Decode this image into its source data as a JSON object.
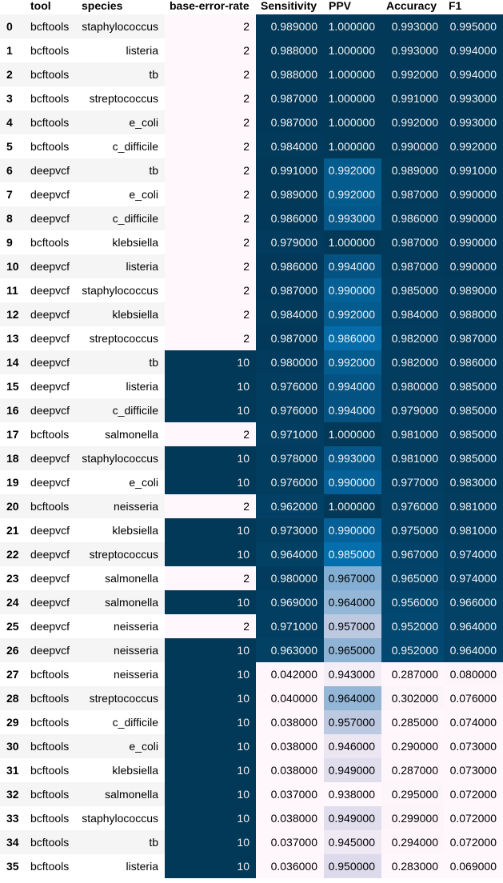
{
  "headers": {
    "index": "",
    "tool": "tool",
    "species": "species",
    "base_error_rate": "base-error-rate",
    "sensitivity": "Sensitivity",
    "ppv": "PPV",
    "accuracy": "Accuracy",
    "f1": "F1"
  },
  "colors": {
    "stripe": "#f5f5f5",
    "white": "#ffffff",
    "dark_blue": "#023858",
    "light_pink": "#fff7fb",
    "light_text": "#f1f1f1",
    "dark_text": "#000000"
  },
  "rows": [
    {
      "index": "0",
      "tool": "bcftools",
      "species": "staphylococcus",
      "base_error_rate": "2",
      "sensitivity": "0.989000",
      "ppv": "1.000000",
      "accuracy": "0.993000",
      "f1": "0.995000"
    },
    {
      "index": "1",
      "tool": "bcftools",
      "species": "listeria",
      "base_error_rate": "2",
      "sensitivity": "0.988000",
      "ppv": "1.000000",
      "accuracy": "0.993000",
      "f1": "0.994000"
    },
    {
      "index": "2",
      "tool": "bcftools",
      "species": "tb",
      "base_error_rate": "2",
      "sensitivity": "0.988000",
      "ppv": "1.000000",
      "accuracy": "0.992000",
      "f1": "0.994000"
    },
    {
      "index": "3",
      "tool": "bcftools",
      "species": "streptococcus",
      "base_error_rate": "2",
      "sensitivity": "0.987000",
      "ppv": "1.000000",
      "accuracy": "0.991000",
      "f1": "0.993000"
    },
    {
      "index": "4",
      "tool": "bcftools",
      "species": "e_coli",
      "base_error_rate": "2",
      "sensitivity": "0.987000",
      "ppv": "1.000000",
      "accuracy": "0.992000",
      "f1": "0.993000"
    },
    {
      "index": "5",
      "tool": "bcftools",
      "species": "c_difficile",
      "base_error_rate": "2",
      "sensitivity": "0.984000",
      "ppv": "1.000000",
      "accuracy": "0.990000",
      "f1": "0.992000"
    },
    {
      "index": "6",
      "tool": "deepvcf",
      "species": "tb",
      "base_error_rate": "2",
      "sensitivity": "0.991000",
      "ppv": "0.992000",
      "accuracy": "0.989000",
      "f1": "0.991000"
    },
    {
      "index": "7",
      "tool": "deepvcf",
      "species": "e_coli",
      "base_error_rate": "2",
      "sensitivity": "0.989000",
      "ppv": "0.992000",
      "accuracy": "0.987000",
      "f1": "0.990000"
    },
    {
      "index": "8",
      "tool": "deepvcf",
      "species": "c_difficile",
      "base_error_rate": "2",
      "sensitivity": "0.986000",
      "ppv": "0.993000",
      "accuracy": "0.986000",
      "f1": "0.990000"
    },
    {
      "index": "9",
      "tool": "bcftools",
      "species": "klebsiella",
      "base_error_rate": "2",
      "sensitivity": "0.979000",
      "ppv": "1.000000",
      "accuracy": "0.987000",
      "f1": "0.990000"
    },
    {
      "index": "10",
      "tool": "deepvcf",
      "species": "listeria",
      "base_error_rate": "2",
      "sensitivity": "0.986000",
      "ppv": "0.994000",
      "accuracy": "0.987000",
      "f1": "0.990000"
    },
    {
      "index": "11",
      "tool": "deepvcf",
      "species": "staphylococcus",
      "base_error_rate": "2",
      "sensitivity": "0.987000",
      "ppv": "0.990000",
      "accuracy": "0.985000",
      "f1": "0.989000"
    },
    {
      "index": "12",
      "tool": "deepvcf",
      "species": "klebsiella",
      "base_error_rate": "2",
      "sensitivity": "0.984000",
      "ppv": "0.992000",
      "accuracy": "0.984000",
      "f1": "0.988000"
    },
    {
      "index": "13",
      "tool": "deepvcf",
      "species": "streptococcus",
      "base_error_rate": "2",
      "sensitivity": "0.987000",
      "ppv": "0.986000",
      "accuracy": "0.982000",
      "f1": "0.987000"
    },
    {
      "index": "14",
      "tool": "deepvcf",
      "species": "tb",
      "base_error_rate": "10",
      "sensitivity": "0.980000",
      "ppv": "0.992000",
      "accuracy": "0.982000",
      "f1": "0.986000"
    },
    {
      "index": "15",
      "tool": "deepvcf",
      "species": "listeria",
      "base_error_rate": "10",
      "sensitivity": "0.976000",
      "ppv": "0.994000",
      "accuracy": "0.980000",
      "f1": "0.985000"
    },
    {
      "index": "16",
      "tool": "deepvcf",
      "species": "c_difficile",
      "base_error_rate": "10",
      "sensitivity": "0.976000",
      "ppv": "0.994000",
      "accuracy": "0.979000",
      "f1": "0.985000"
    },
    {
      "index": "17",
      "tool": "bcftools",
      "species": "salmonella",
      "base_error_rate": "2",
      "sensitivity": "0.971000",
      "ppv": "1.000000",
      "accuracy": "0.981000",
      "f1": "0.985000"
    },
    {
      "index": "18",
      "tool": "deepvcf",
      "species": "staphylococcus",
      "base_error_rate": "10",
      "sensitivity": "0.978000",
      "ppv": "0.993000",
      "accuracy": "0.981000",
      "f1": "0.985000"
    },
    {
      "index": "19",
      "tool": "deepvcf",
      "species": "e_coli",
      "base_error_rate": "10",
      "sensitivity": "0.976000",
      "ppv": "0.990000",
      "accuracy": "0.977000",
      "f1": "0.983000"
    },
    {
      "index": "20",
      "tool": "bcftools",
      "species": "neisseria",
      "base_error_rate": "2",
      "sensitivity": "0.962000",
      "ppv": "1.000000",
      "accuracy": "0.976000",
      "f1": "0.981000"
    },
    {
      "index": "21",
      "tool": "deepvcf",
      "species": "klebsiella",
      "base_error_rate": "10",
      "sensitivity": "0.973000",
      "ppv": "0.990000",
      "accuracy": "0.975000",
      "f1": "0.981000"
    },
    {
      "index": "22",
      "tool": "deepvcf",
      "species": "streptococcus",
      "base_error_rate": "10",
      "sensitivity": "0.964000",
      "ppv": "0.985000",
      "accuracy": "0.967000",
      "f1": "0.974000"
    },
    {
      "index": "23",
      "tool": "deepvcf",
      "species": "salmonella",
      "base_error_rate": "2",
      "sensitivity": "0.980000",
      "ppv": "0.967000",
      "accuracy": "0.965000",
      "f1": "0.974000"
    },
    {
      "index": "24",
      "tool": "deepvcf",
      "species": "salmonella",
      "base_error_rate": "10",
      "sensitivity": "0.969000",
      "ppv": "0.964000",
      "accuracy": "0.956000",
      "f1": "0.966000"
    },
    {
      "index": "25",
      "tool": "deepvcf",
      "species": "neisseria",
      "base_error_rate": "2",
      "sensitivity": "0.971000",
      "ppv": "0.957000",
      "accuracy": "0.952000",
      "f1": "0.964000"
    },
    {
      "index": "26",
      "tool": "deepvcf",
      "species": "neisseria",
      "base_error_rate": "10",
      "sensitivity": "0.963000",
      "ppv": "0.965000",
      "accuracy": "0.952000",
      "f1": "0.964000"
    },
    {
      "index": "27",
      "tool": "bcftools",
      "species": "neisseria",
      "base_error_rate": "10",
      "sensitivity": "0.042000",
      "ppv": "0.943000",
      "accuracy": "0.287000",
      "f1": "0.080000"
    },
    {
      "index": "28",
      "tool": "bcftools",
      "species": "streptococcus",
      "base_error_rate": "10",
      "sensitivity": "0.040000",
      "ppv": "0.964000",
      "accuracy": "0.302000",
      "f1": "0.076000"
    },
    {
      "index": "29",
      "tool": "bcftools",
      "species": "c_difficile",
      "base_error_rate": "10",
      "sensitivity": "0.038000",
      "ppv": "0.957000",
      "accuracy": "0.285000",
      "f1": "0.074000"
    },
    {
      "index": "30",
      "tool": "bcftools",
      "species": "e_coli",
      "base_error_rate": "10",
      "sensitivity": "0.038000",
      "ppv": "0.946000",
      "accuracy": "0.290000",
      "f1": "0.073000"
    },
    {
      "index": "31",
      "tool": "bcftools",
      "species": "klebsiella",
      "base_error_rate": "10",
      "sensitivity": "0.038000",
      "ppv": "0.949000",
      "accuracy": "0.287000",
      "f1": "0.073000"
    },
    {
      "index": "32",
      "tool": "bcftools",
      "species": "salmonella",
      "base_error_rate": "10",
      "sensitivity": "0.037000",
      "ppv": "0.938000",
      "accuracy": "0.295000",
      "f1": "0.072000"
    },
    {
      "index": "33",
      "tool": "bcftools",
      "species": "staphylococcus",
      "base_error_rate": "10",
      "sensitivity": "0.038000",
      "ppv": "0.949000",
      "accuracy": "0.299000",
      "f1": "0.072000"
    },
    {
      "index": "34",
      "tool": "bcftools",
      "species": "tb",
      "base_error_rate": "10",
      "sensitivity": "0.037000",
      "ppv": "0.945000",
      "accuracy": "0.294000",
      "f1": "0.072000"
    },
    {
      "index": "35",
      "tool": "bcftools",
      "species": "listeria",
      "base_error_rate": "10",
      "sensitivity": "0.036000",
      "ppv": "0.950000",
      "accuracy": "0.283000",
      "f1": "0.069000"
    }
  ]
}
